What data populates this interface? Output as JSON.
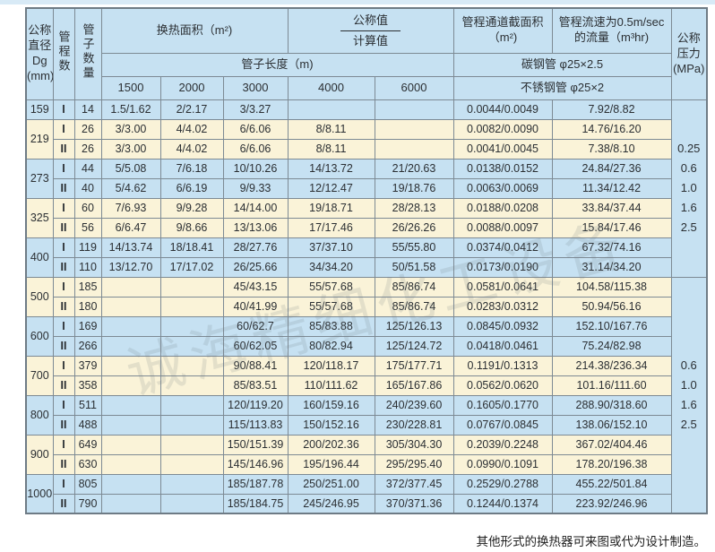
{
  "page": {
    "watermark": "诚海精细化工设备",
    "footnote": "其他形式的换热器可来图或代为设计制造。"
  },
  "header": {
    "diameter": "公称\n直径\nDg\n(mm)",
    "passes": "管程数",
    "tubes": "管子数量",
    "area": "换热面积（m²)",
    "nominal_value": "公称值",
    "calculated_value": "计算值",
    "tube_length": "管子长度（m)",
    "lengths": [
      "1500",
      "2000",
      "3000",
      "4000",
      "6000"
    ],
    "section": "管程通道截面积\n（m²)",
    "flow": "管程流速为0.5m/sec\n的流量（m³hr)",
    "carbon_steel": "碳钢管 φ25×2.5",
    "stainless_steel": "不锈钢管 φ25×2",
    "pressure": "公称\n压力\n(MPa)"
  },
  "groups": [
    {
      "dg": "159",
      "tone": "blue",
      "rows": [
        {
          "pass": "I",
          "tubes": "14",
          "areas": [
            "1.5/1.62",
            "2/2.17",
            "3/3.27",
            "",
            ""
          ],
          "section": "0.0044/0.0049",
          "flow": "7.92/8.82"
        }
      ]
    },
    {
      "dg": "219",
      "tone": "cream",
      "rows": [
        {
          "pass": "I",
          "tubes": "26",
          "areas": [
            "3/3.00",
            "4/4.02",
            "6/6.06",
            "8/8.11",
            ""
          ],
          "section": "0.0082/0.0090",
          "flow": "14.76/16.20"
        },
        {
          "pass": "II",
          "tubes": "26",
          "areas": [
            "3/3.00",
            "4/4.02",
            "6/6.06",
            "8/8.11",
            ""
          ],
          "section": "0.0041/0.0045",
          "flow": "7.38/8.10"
        }
      ]
    },
    {
      "dg": "273",
      "tone": "blue",
      "rows": [
        {
          "pass": "I",
          "tubes": "44",
          "areas": [
            "5/5.08",
            "7/6.18",
            "10/10.26",
            "14/13.72",
            "21/20.63"
          ],
          "section": "0.0138/0.0152",
          "flow": "24.84/27.36"
        },
        {
          "pass": "II",
          "tubes": "40",
          "areas": [
            "5/4.62",
            "6/6.19",
            "9/9.33",
            "12/12.47",
            "19/18.76"
          ],
          "section": "0.0063/0.0069",
          "flow": "11.34/12.42"
        }
      ]
    },
    {
      "dg": "325",
      "tone": "cream",
      "rows": [
        {
          "pass": "I",
          "tubes": "60",
          "areas": [
            "7/6.93",
            "9/9.28",
            "14/14.00",
            "19/18.71",
            "28/28.13"
          ],
          "section": "0.0188/0.0208",
          "flow": "33.84/37.44"
        },
        {
          "pass": "II",
          "tubes": "56",
          "areas": [
            "6/6.47",
            "9/8.66",
            "13/13.06",
            "17/17.46",
            "26/26.26"
          ],
          "section": "0.0088/0.0097",
          "flow": "15.84/17.46"
        }
      ]
    },
    {
      "dg": "400",
      "tone": "blue",
      "rows": [
        {
          "pass": "I",
          "tubes": "119",
          "areas": [
            "14/13.74",
            "18/18.41",
            "28/27.76",
            "37/37.10",
            "55/55.80"
          ],
          "section": "0.0374/0.0412",
          "flow": "67.32/74.16"
        },
        {
          "pass": "II",
          "tubes": "110",
          "areas": [
            "13/12.70",
            "17/17.02",
            "26/25.66",
            "34/34.20",
            "50/51.58"
          ],
          "section": "0.0173/0.0190",
          "flow": "31.14/34.20"
        }
      ]
    },
    {
      "dg": "500",
      "tone": "cream",
      "rows": [
        {
          "pass": "I",
          "tubes": "185",
          "areas": [
            "",
            "",
            "45/43.15",
            "55/57.68",
            "85/86.74"
          ],
          "section": "0.0581/0.0641",
          "flow": "104.58/115.38"
        },
        {
          "pass": "II",
          "tubes": "180",
          "areas": [
            "",
            "",
            "40/41.99",
            "55/57.68",
            "85/86.74"
          ],
          "section": "0.0283/0.0312",
          "flow": "50.94/56.16"
        }
      ]
    },
    {
      "dg": "600",
      "tone": "blue",
      "rows": [
        {
          "pass": "I",
          "tubes": "169",
          "areas": [
            "",
            "",
            "60/62.7",
            "85/83.88",
            "125/126.13"
          ],
          "section": "0.0845/0.0932",
          "flow": "152.10/167.76"
        },
        {
          "pass": "II",
          "tubes": "266",
          "areas": [
            "",
            "",
            "60/62.05",
            "80/82.94",
            "125/124.72"
          ],
          "section": "0.0418/0.0461",
          "flow": "75.24/82.98"
        }
      ]
    },
    {
      "dg": "700",
      "tone": "cream",
      "rows": [
        {
          "pass": "I",
          "tubes": "379",
          "areas": [
            "",
            "",
            "90/88.41",
            "120/118.17",
            "175/177.71"
          ],
          "section": "0.1191/0.1313",
          "flow": "214.38/236.34"
        },
        {
          "pass": "II",
          "tubes": "358",
          "areas": [
            "",
            "",
            "85/83.51",
            "110/111.62",
            "165/167.86"
          ],
          "section": "0.0562/0.0620",
          "flow": "101.16/111.60"
        }
      ]
    },
    {
      "dg": "800",
      "tone": "blue",
      "rows": [
        {
          "pass": "I",
          "tubes": "511",
          "areas": [
            "",
            "",
            "120/119.20",
            "160/159.16",
            "240/239.60"
          ],
          "section": "0.1605/0.1770",
          "flow": "288.90/318.60"
        },
        {
          "pass": "II",
          "tubes": "488",
          "areas": [
            "",
            "",
            "115/113.83",
            "150/152.16",
            "230/228.81"
          ],
          "section": "0.0767/0.0845",
          "flow": "138.06/152.10"
        }
      ]
    },
    {
      "dg": "900",
      "tone": "cream",
      "rows": [
        {
          "pass": "I",
          "tubes": "649",
          "areas": [
            "",
            "",
            "150/151.39",
            "200/202.36",
            "305/304.30"
          ],
          "section": "0.2039/0.2248",
          "flow": "367.02/404.46"
        },
        {
          "pass": "II",
          "tubes": "630",
          "areas": [
            "",
            "",
            "145/146.96",
            "195/196.44",
            "295/295.40"
          ],
          "section": "0.0990/0.1091",
          "flow": "178.20/196.38"
        }
      ]
    },
    {
      "dg": "1000",
      "tone": "blue",
      "rows": [
        {
          "pass": "I",
          "tubes": "805",
          "areas": [
            "",
            "",
            "185/187.78",
            "250/251.00",
            "372/377.45"
          ],
          "section": "0.2529/0.2788",
          "flow": "455.22/501.84"
        },
        {
          "pass": "II",
          "tubes": "790",
          "areas": [
            "",
            "",
            "185/184.75",
            "245/246.95",
            "370/371.36"
          ],
          "section": "0.1244/0.1374",
          "flow": "223.92/246.96"
        }
      ]
    }
  ],
  "pressure_blocks": [
    {
      "rowspan": 9,
      "values": [
        "0.25",
        "0.6",
        "1.0",
        "1.6",
        "2.5"
      ]
    },
    {
      "rowspan": 12,
      "values": [
        "0.6",
        "1.0",
        "1.6",
        "2.5"
      ]
    }
  ],
  "colors": {
    "row_blue": "#c6e1f2",
    "row_cream": "#faf3d8",
    "border": "#7d8a94",
    "text": "#2b2f33"
  }
}
